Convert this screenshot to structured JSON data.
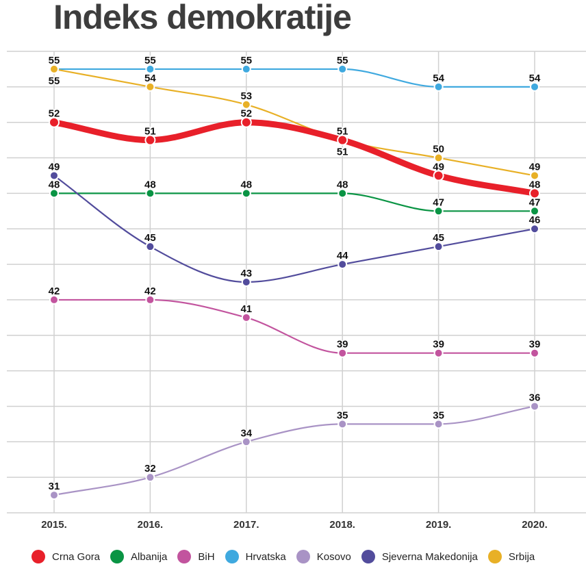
{
  "chart_data": {
    "type": "line",
    "title": "Indeks demokratije",
    "categories": [
      "2015.",
      "2016.",
      "2017.",
      "2018.",
      "2019.",
      "2020."
    ],
    "ylim": [
      30,
      56
    ],
    "grid": true,
    "legend_position": "bottom",
    "series": [
      {
        "name": "Albanija",
        "color": "#0a9444",
        "values": [
          48,
          48,
          48,
          48,
          47,
          47
        ]
      },
      {
        "name": "BiH",
        "color": "#c2549e",
        "values": [
          42,
          42,
          41,
          39,
          39,
          39
        ]
      },
      {
        "name": "Hrvatska",
        "color": "#3fa9df",
        "values": [
          55,
          55,
          55,
          55,
          54,
          54
        ]
      },
      {
        "name": "Kosovo",
        "color": "#a993c5",
        "values": [
          31,
          32,
          34,
          35,
          35,
          36
        ]
      },
      {
        "name": "Sjeverna Makedonija",
        "color": "#524c9c",
        "values": [
          49,
          45,
          43,
          44,
          45,
          46
        ]
      },
      {
        "name": "Srbija",
        "color": "#e8b026",
        "values": [
          55,
          54,
          53,
          51,
          50,
          49
        ]
      },
      {
        "name": "Crna Gora",
        "color": "#e8202a",
        "values": [
          52,
          51,
          52,
          51,
          49,
          48
        ],
        "highlight": true
      }
    ],
    "legend_order": [
      "Crna Gora",
      "Albanija",
      "BiH",
      "Hrvatska",
      "Kosovo",
      "Sjeverna Makedonija",
      "Srbija"
    ]
  }
}
